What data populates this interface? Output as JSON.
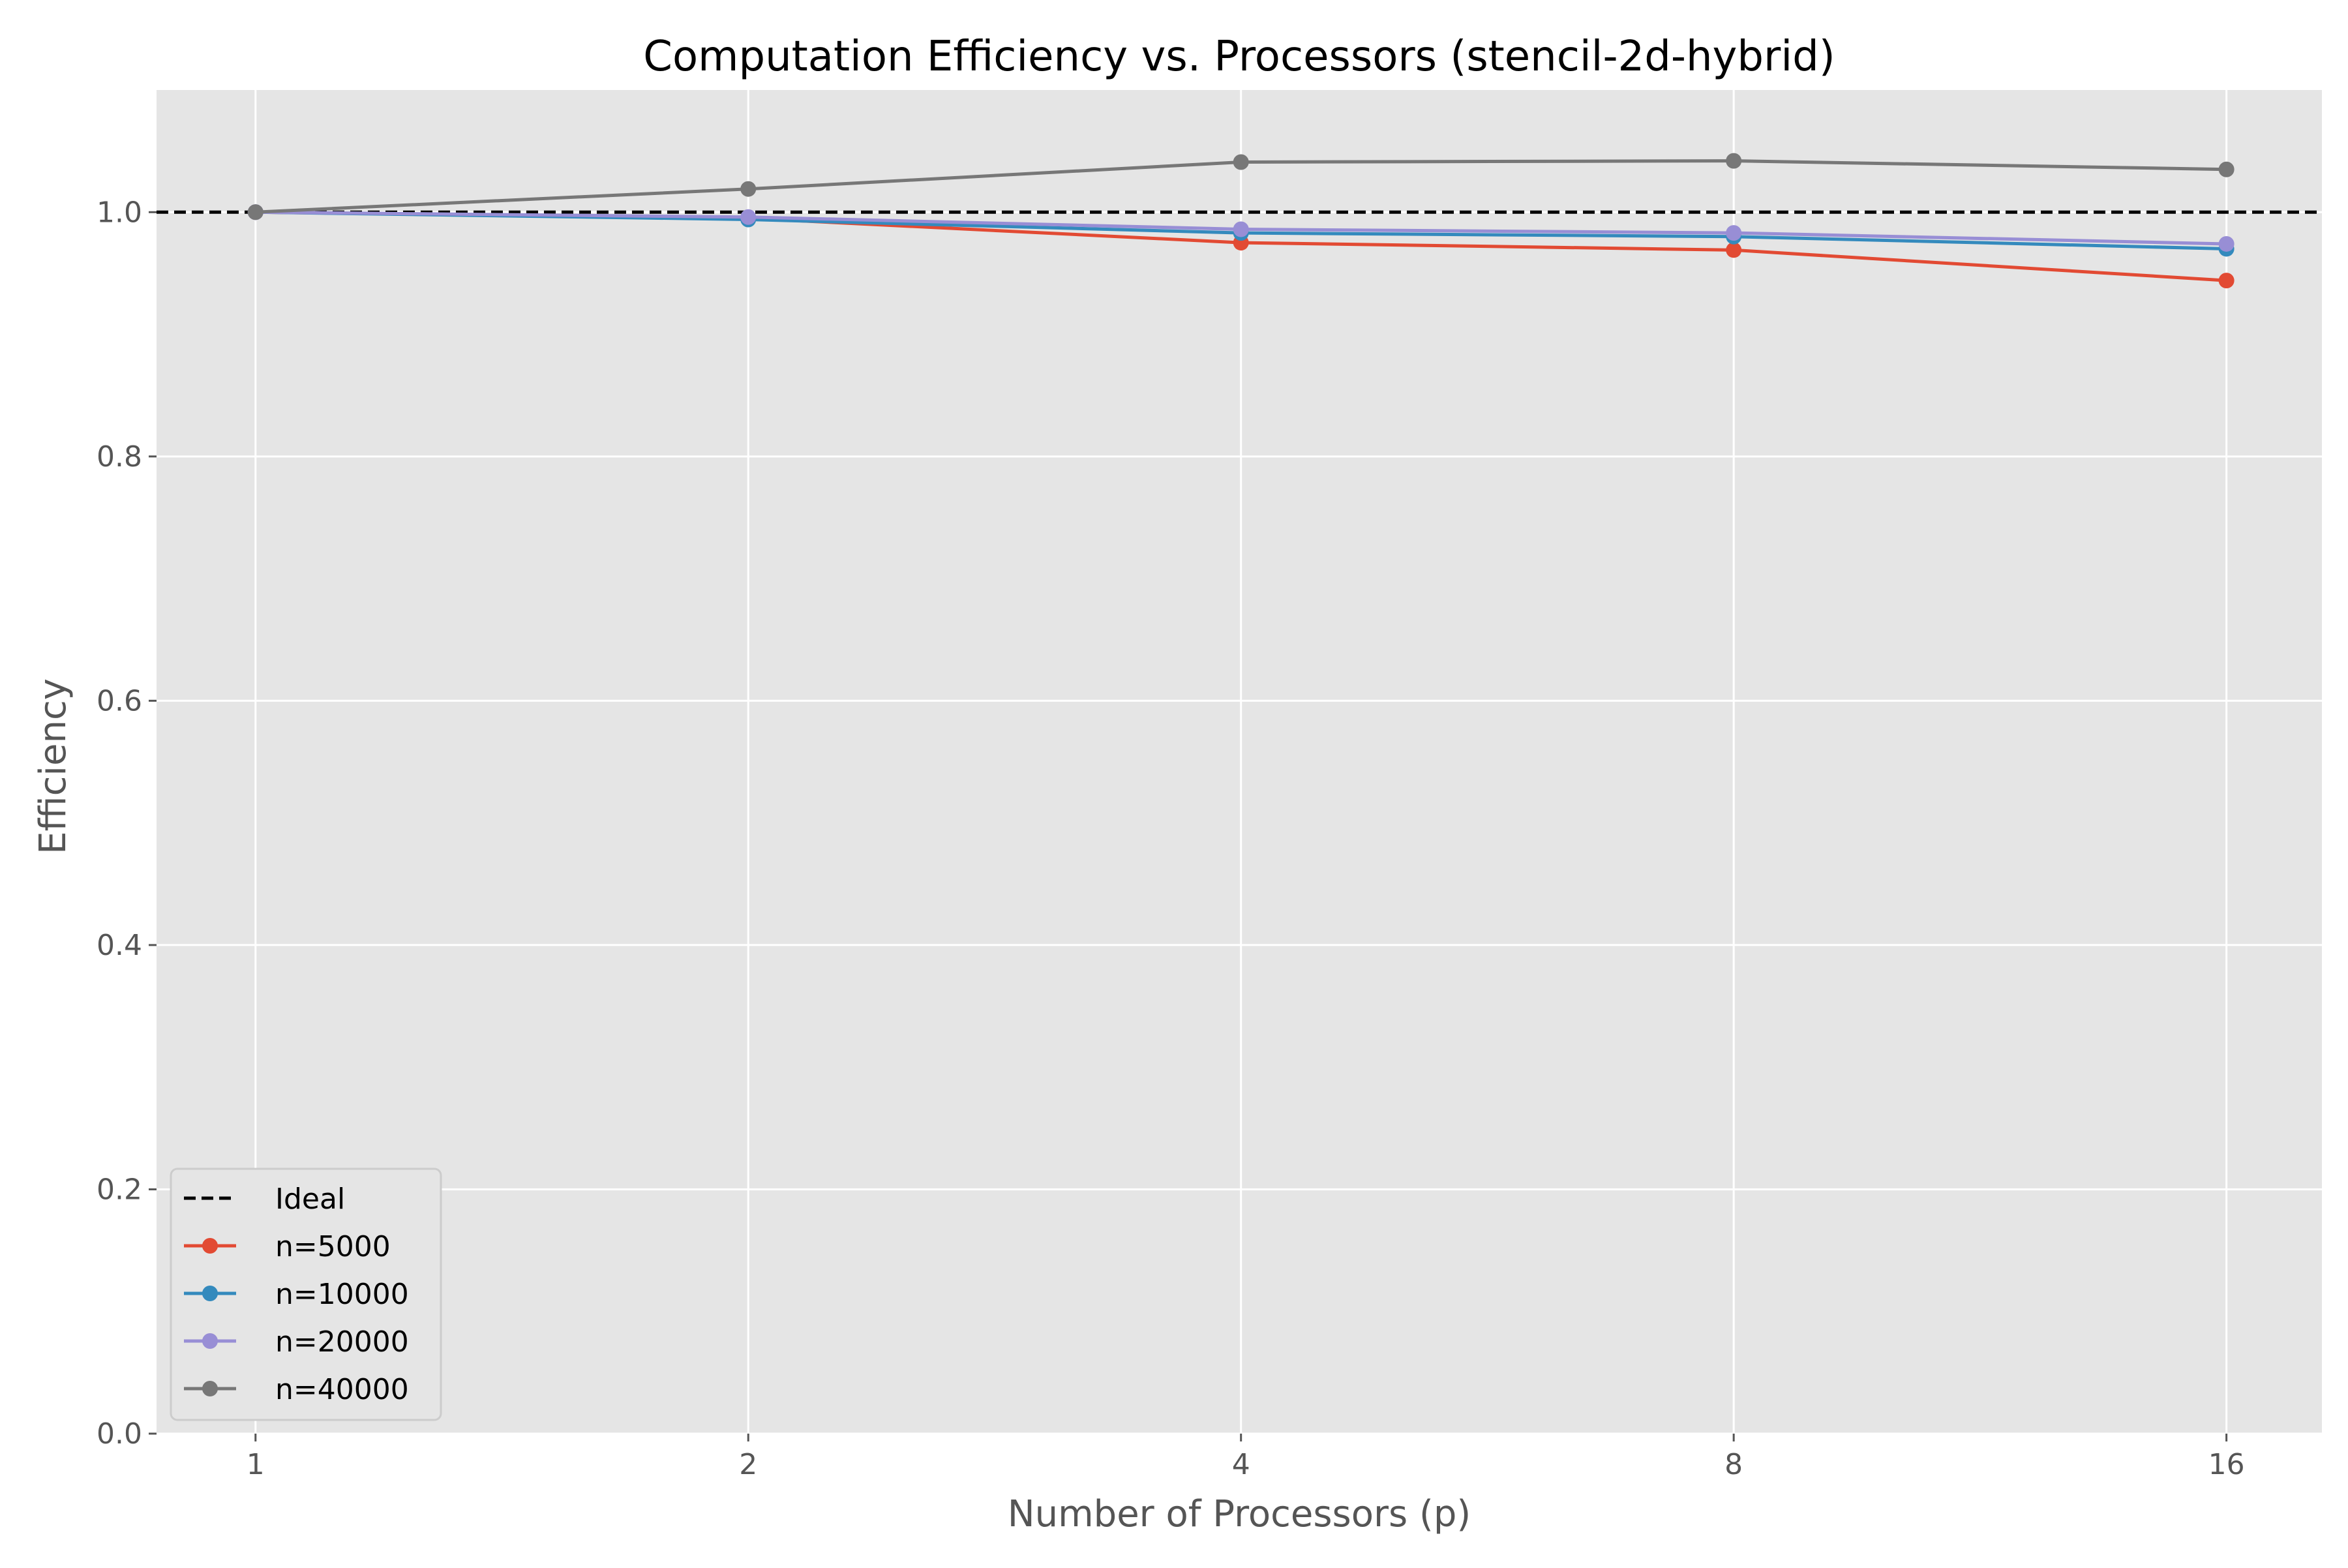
{
  "chart_data": {
    "type": "line",
    "title": "Computation Efficiency vs. Processors (stencil-2d-hybrid)",
    "xlabel": "Number of Processors (p)",
    "ylabel": "Efficiency",
    "x_scale": "log2",
    "x": [
      1,
      2,
      4,
      8,
      16
    ],
    "x_tick_labels": [
      "1",
      "2",
      "4",
      "8",
      "16"
    ],
    "xlim": [
      0.87,
      18.3
    ],
    "ylim": [
      0.0,
      1.1
    ],
    "y_ticks": [
      0.0,
      0.2,
      0.4,
      0.6,
      0.8,
      1.0
    ],
    "y_tick_labels": [
      "0.0",
      "0.2",
      "0.4",
      "0.6",
      "0.8",
      "1.0"
    ],
    "grid": true,
    "legend_position": "lower-left",
    "reference_line": {
      "name": "Ideal",
      "y": 1.0,
      "color": "#000000",
      "style": "dashed"
    },
    "series": [
      {
        "name": "n=5000",
        "color": "#E24A33",
        "values": [
          1.0,
          0.995,
          0.975,
          0.969,
          0.944
        ]
      },
      {
        "name": "n=10000",
        "color": "#348ABD",
        "values": [
          1.0,
          0.994,
          0.983,
          0.98,
          0.97
        ]
      },
      {
        "name": "n=20000",
        "color": "#988ED5",
        "values": [
          1.0,
          0.996,
          0.986,
          0.983,
          0.974
        ]
      },
      {
        "name": "n=40000",
        "color": "#777777",
        "values": [
          1.0,
          1.019,
          1.041,
          1.042,
          1.035
        ]
      }
    ],
    "colors": {
      "plot_background": "#E5E5E5",
      "grid": "#FFFFFF",
      "tick_text": "#555555",
      "title_text": "#000000"
    }
  }
}
